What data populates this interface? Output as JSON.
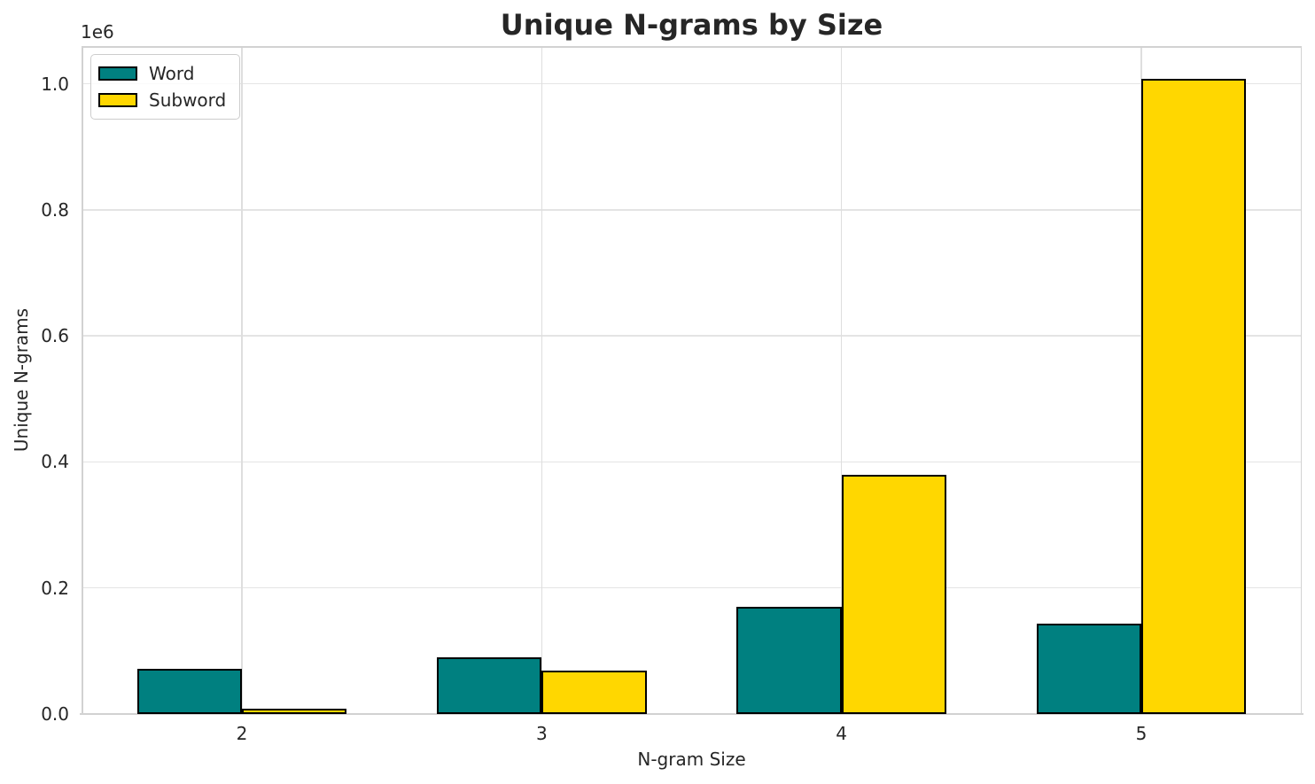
{
  "chart_data": {
    "type": "bar",
    "title": "Unique N-grams by Size",
    "xlabel": "N-gram Size",
    "ylabel": "Unique N-grams",
    "y_offset_text": "1e6",
    "categories": [
      "2",
      "3",
      "4",
      "5"
    ],
    "series": [
      {
        "name": "Word",
        "color": "#008080",
        "values": [
          72000,
          90000,
          170000,
          144000
        ]
      },
      {
        "name": "Subword",
        "color": "#FFD700",
        "values": [
          8000,
          69000,
          379000,
          1008000
        ]
      }
    ],
    "bar_edge_color": "#000000",
    "bar_width_fraction": 0.35,
    "ylim": [
      0,
      1060000
    ],
    "yticks": [
      0,
      200000,
      400000,
      600000,
      800000,
      1000000
    ],
    "ytick_labels": [
      "0.0",
      "0.2",
      "0.4",
      "0.6",
      "0.8",
      "1.0"
    ],
    "grid": true,
    "legend_position": "upper-left",
    "text_color": "#262626",
    "grid_color": "#e4e4e4"
  }
}
